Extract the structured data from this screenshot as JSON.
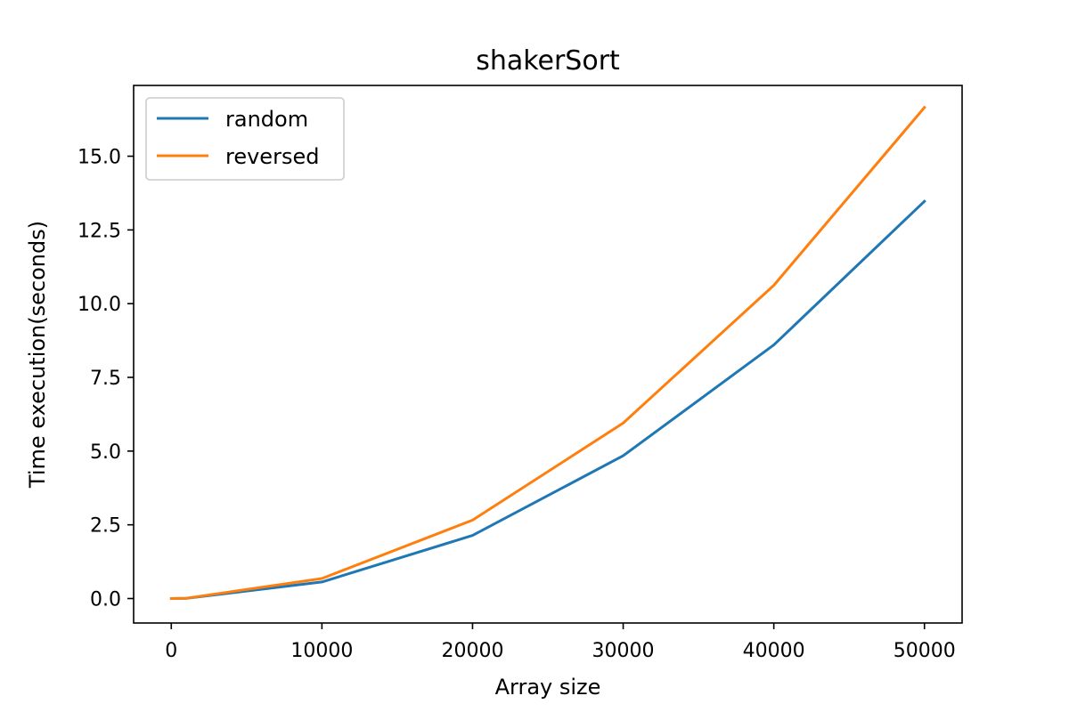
{
  "chart_data": {
    "type": "line",
    "title": "shakerSort",
    "xlabel": "Array size",
    "ylabel": "Time execution(seconds)",
    "xlim": [
      -2500,
      52500
    ],
    "ylim": [
      -0.83,
      17.4
    ],
    "x_ticks": [
      0,
      10000,
      20000,
      30000,
      40000,
      50000
    ],
    "x_tick_labels": [
      "0",
      "10000",
      "20000",
      "30000",
      "40000",
      "50000"
    ],
    "y_ticks": [
      0,
      2.5,
      5,
      7.5,
      10,
      12.5,
      15
    ],
    "y_tick_labels": [
      "0.0",
      "2.5",
      "5.0",
      "7.5",
      "10.0",
      "12.5",
      "15.0"
    ],
    "grid": false,
    "legend_position": "upper-left",
    "x": [
      10,
      100,
      1000,
      10000,
      20000,
      30000,
      40000,
      50000
    ],
    "series": [
      {
        "name": "random",
        "color": "#1f77b4",
        "values": [
          0.0,
          0.0,
          0.01,
          0.56,
          2.14,
          4.84,
          8.6,
          13.47
        ]
      },
      {
        "name": "reversed",
        "color": "#ff7f0e",
        "values": [
          0.0,
          0.0,
          0.01,
          0.68,
          2.66,
          5.95,
          10.62,
          16.65
        ]
      }
    ]
  }
}
